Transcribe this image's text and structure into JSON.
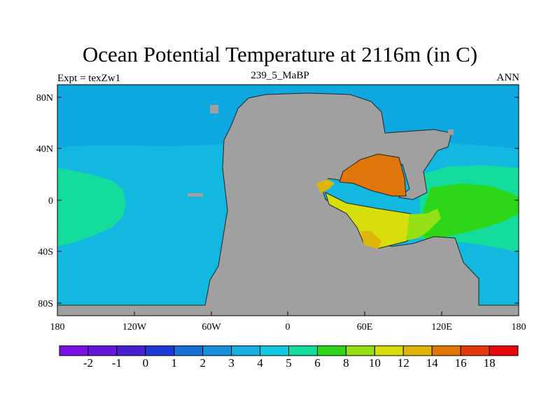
{
  "title": "Ocean Potential Temperature at 2116m (in C)",
  "left_string": "Expt = texZw1",
  "center_string": "239_5_MaBP",
  "right_string": "ANN",
  "x_ticks": [
    "180",
    "120W",
    "60W",
    "0",
    "60E",
    "120E",
    "180"
  ],
  "y_ticks": [
    "80N",
    "40N",
    "0",
    "40S",
    "80S"
  ],
  "colorbar": {
    "colors": [
      "#7a10e8",
      "#6416dc",
      "#4a1ed2",
      "#1c3ad8",
      "#1670d8",
      "#1790de",
      "#16aee2",
      "#12c8de",
      "#14dc9c",
      "#2ed618",
      "#94e014",
      "#d8de0c",
      "#dfb50b",
      "#e0760a",
      "#e23a0a",
      "#e60808"
    ],
    "labels": [
      "-2",
      "-1",
      "0",
      "1",
      "2",
      "3",
      "4",
      "5",
      "6",
      "8",
      "10",
      "12",
      "14",
      "16",
      "18"
    ]
  },
  "colors": {
    "land": "#a0a0a0",
    "ocean_4_5": "#12b8e0",
    "ocean_3_4": "#0ea8e0",
    "ocean_5_6": "#14dc9c",
    "ocean_6_8": "#2ed618",
    "ocean_10_12": "#d8de0c",
    "ocean_12_14": "#dfb50b",
    "ocean_14_16": "#e0760a",
    "ocean_8_10": "#94e014"
  }
}
